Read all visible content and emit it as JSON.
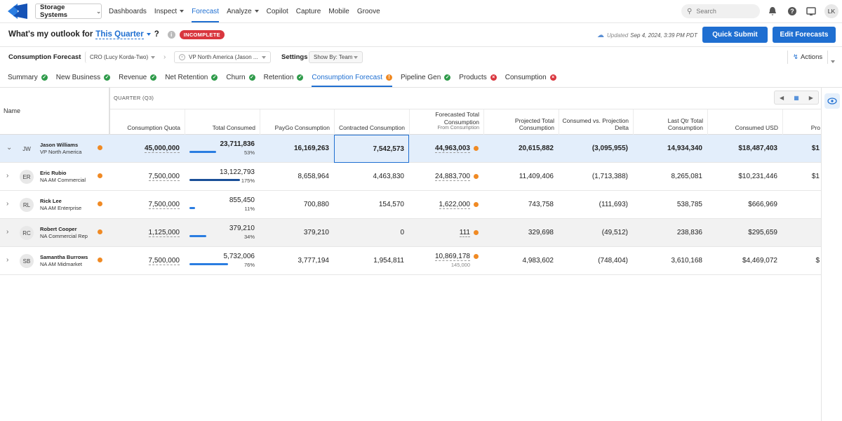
{
  "nav": {
    "brand": "Storage Systems",
    "links": [
      "Dashboards",
      "Inspect",
      "Forecast",
      "Analyze",
      "Copilot",
      "Capture",
      "Mobile",
      "Groove"
    ],
    "search": "Search",
    "user": "LK"
  },
  "header": {
    "question": "What's my outlook for",
    "period": "This Quarter",
    "question_mark": "?",
    "status": "INCOMPLETE",
    "updated_label": "Updated",
    "updated_time": "Sep 4, 2024, 3:39 PM PDT",
    "buttons": [
      "Quick Submit",
      "Edit Forecasts"
    ]
  },
  "filters": {
    "forecast": "Consumption Forecast",
    "cro": "CRO (Lucy Korda-Two)",
    "vp": "VP North America (Jason ...",
    "settings": "Settings",
    "show_by": "Show By: Team",
    "actions": "Actions"
  },
  "tabs": [
    {
      "label": "Summary",
      "icon": "check"
    },
    {
      "label": "New Business",
      "icon": "check"
    },
    {
      "label": "Revenue",
      "icon": "check"
    },
    {
      "label": "Net Retention",
      "icon": "check"
    },
    {
      "label": "Churn",
      "icon": "check"
    },
    {
      "label": "Retention",
      "icon": "check"
    },
    {
      "label": "Consumption Forecast",
      "icon": "warning",
      "active": true
    },
    {
      "label": "Pipeline Gen",
      "icon": "check"
    },
    {
      "label": "Products",
      "icon": "error"
    },
    {
      "label": "Consumption",
      "icon": "error"
    }
  ],
  "table": {
    "name_header": "Name",
    "group": "QUARTER (Q3)",
    "columns": [
      {
        "label": "Consumption Quota",
        "editable": true
      },
      {
        "label": "Total Consumed"
      },
      {
        "label": "PayGo Consumption"
      },
      {
        "label": "Contracted Consumption"
      },
      {
        "label": "Forecasted Total Consumption",
        "sub": "From Consumption",
        "editable": true,
        "flag": true
      },
      {
        "label": "Projected Total Consumption"
      },
      {
        "label": "Consumed vs. Projection Delta"
      },
      {
        "label": "Last Qtr Total Consumption"
      },
      {
        "label": "Consumed USD"
      },
      {
        "label": "Pro"
      }
    ],
    "rows": [
      {
        "initials": "JW",
        "name": "Jason Williams",
        "title": "VP North America",
        "state": "selected",
        "expanded": true,
        "focus": 3,
        "cells": [
          "45,000,000",
          {
            "value": "23,711,836",
            "pct": "53%"
          },
          "16,169,263",
          "7,542,573",
          {
            "value": "44,963,003"
          },
          "20,615,882",
          "(3,095,955)",
          "14,934,340",
          "$18,487,403",
          "$1"
        ]
      },
      {
        "initials": "ER",
        "name": "Eric Rubio",
        "title": "NA AM Commercial",
        "cells": [
          "7,500,000",
          {
            "value": "13,122,793",
            "pct": "175%"
          },
          "8,658,964",
          "4,463,830",
          {
            "value": "24,883,700"
          },
          "11,409,406",
          "(1,713,388)",
          "8,265,081",
          "$10,231,446",
          "$1"
        ]
      },
      {
        "initials": "RL",
        "name": "Rick Lee",
        "title": "NA AM Enterprise",
        "cells": [
          "7,500,000",
          {
            "value": "855,450",
            "pct": "11%"
          },
          "700,880",
          "154,570",
          {
            "value": "1,622,000"
          },
          "743,758",
          "(111,693)",
          "538,785",
          "$666,969",
          null
        ]
      },
      {
        "initials": "RC",
        "name": "Robert Cooper",
        "title": "NA Commercial Rep",
        "state": "hover",
        "cells": [
          "1,125,000",
          {
            "value": "379,210",
            "pct": "34%"
          },
          "379,210",
          "0",
          {
            "value": "111"
          },
          "329,698",
          "(49,512)",
          "238,836",
          "$295,659",
          null
        ]
      },
      {
        "initials": "SB",
        "name": "Samantha Burrows",
        "title": "NA AM Midmarket",
        "cells": [
          "7,500,000",
          {
            "value": "5,732,006",
            "pct": "76%"
          },
          "3,777,194",
          "1,954,811",
          {
            "value": "10,869,178",
            "sub": "145,000"
          },
          "4,983,602",
          "(748,404)",
          "3,610,168",
          "$4,469,072",
          "$"
        ]
      }
    ]
  }
}
